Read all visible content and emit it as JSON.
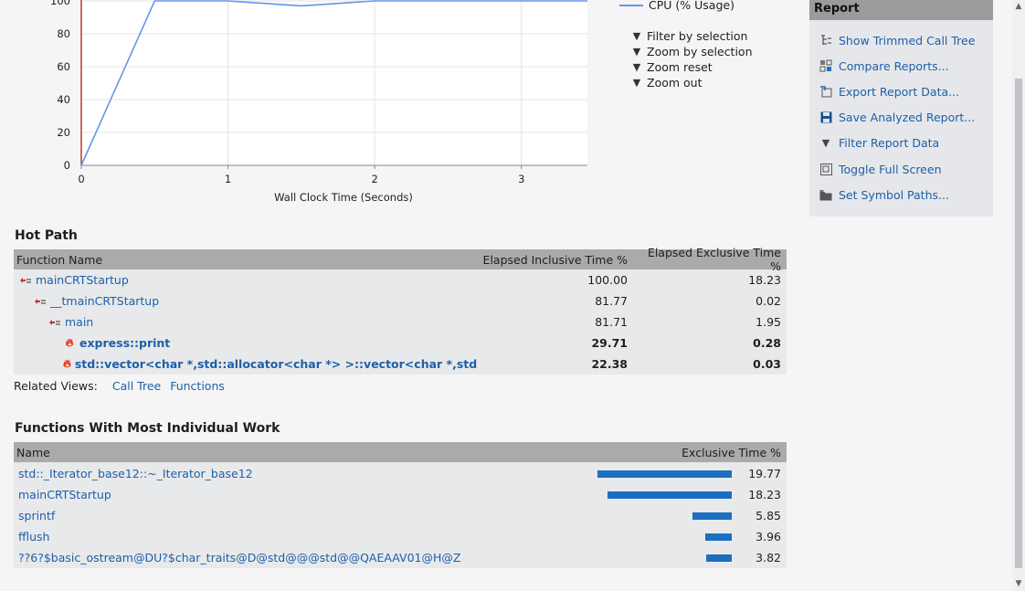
{
  "chart_data": {
    "type": "line",
    "xlabel": "Wall Clock Time (Seconds)",
    "ylabel": "",
    "x_ticks": [
      "0",
      "1",
      "2",
      "3"
    ],
    "y_ticks": [
      "0",
      "20",
      "40",
      "60",
      "80",
      "100"
    ],
    "xlim": [
      0,
      3.45
    ],
    "ylim": [
      0,
      100
    ],
    "series": [
      {
        "name": "CPU (% Usage)",
        "color": "#6495ed",
        "x": [
          0,
          0.5,
          1.0,
          1.5,
          2.0,
          2.5,
          3.0,
          3.45
        ],
        "y": [
          0,
          100,
          100,
          97,
          100,
          100,
          100,
          100
        ]
      }
    ],
    "marker_line": {
      "x": 0,
      "color": "#c0392b"
    }
  },
  "legend": {
    "cpu": "CPU (% Usage)"
  },
  "zoom_actions": [
    {
      "label": "Filter by selection",
      "icon": "filter-icon"
    },
    {
      "label": "Zoom by selection",
      "icon": "zoom-icon"
    },
    {
      "label": "Zoom reset",
      "icon": "zoom-reset-icon"
    },
    {
      "label": "Zoom out",
      "icon": "zoom-out-icon"
    }
  ],
  "report": {
    "title": "Report",
    "items": [
      {
        "label": "Show Trimmed Call Tree",
        "icon": "call-tree-icon"
      },
      {
        "label": "Compare Reports...",
        "icon": "compare-icon"
      },
      {
        "label": "Export Report Data...",
        "icon": "export-icon"
      },
      {
        "label": "Save Analyzed Report...",
        "icon": "save-icon"
      },
      {
        "label": "Filter Report Data",
        "icon": "filter-icon"
      },
      {
        "label": "Toggle Full Screen",
        "icon": "fullscreen-icon"
      },
      {
        "label": "Set Symbol Paths...",
        "icon": "folder-icon"
      }
    ]
  },
  "hot_path": {
    "title": "Hot Path",
    "headers": {
      "name": "Function Name",
      "inclusive": "Elapsed Inclusive Time %",
      "exclusive": "Elapsed Exclusive Time %"
    },
    "rows": [
      {
        "name": "mainCRTStartup",
        "inclusive": "100.00",
        "exclusive": "18.23"
      },
      {
        "name": "__tmainCRTStartup",
        "inclusive": "81.77",
        "exclusive": "0.02"
      },
      {
        "name": "main",
        "inclusive": "81.71",
        "exclusive": "1.95"
      },
      {
        "name": "express::print",
        "inclusive": "29.71",
        "exclusive": "0.28"
      },
      {
        "name": "std::vector<char *,std::allocator<char *> >::vector<char *,std::allocat...",
        "inclusive": "22.38",
        "exclusive": "0.03"
      }
    ]
  },
  "related_views": {
    "label": "Related Views:",
    "call_tree": "Call Tree",
    "functions": "Functions"
  },
  "individual_work": {
    "title": "Functions With Most Individual Work",
    "headers": {
      "name": "Name",
      "exclusive": "Exclusive Time %"
    },
    "rows": [
      {
        "name": "std::_Iterator_base12::~_Iterator_base12",
        "value": "19.77",
        "fraction": 0.1977
      },
      {
        "name": "mainCRTStartup",
        "value": "18.23",
        "fraction": 0.1823
      },
      {
        "name": "sprintf",
        "value": "5.85",
        "fraction": 0.0585
      },
      {
        "name": "fflush",
        "value": "3.96",
        "fraction": 0.0396
      },
      {
        "name": "??6?$basic_ostream@DU?$char_traits@D@std@@@std@@QAEAAV01@H@Z",
        "value": "3.82",
        "fraction": 0.0382
      }
    ]
  }
}
